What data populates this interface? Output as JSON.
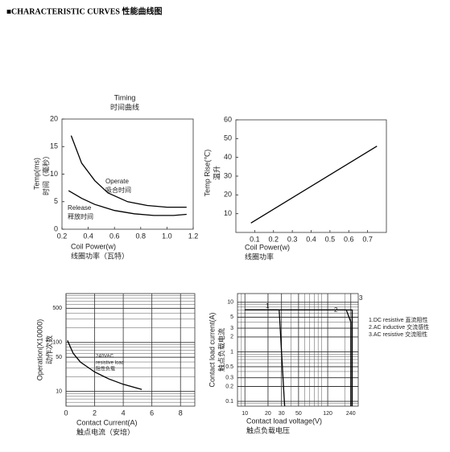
{
  "header": {
    "title": "■CHARACTERISTIC CURVES 性能曲线图"
  },
  "chart_data": [
    {
      "type": "line",
      "title": "Timing",
      "subtitle": "时间曲线",
      "xlabel": [
        "Coil Power(w)",
        "线圈功率（瓦特）"
      ],
      "ylabel": [
        "Temp(ms)",
        "时间（毫秒）"
      ],
      "xlim": [
        0.2,
        1.2
      ],
      "xticks": [
        0.2,
        0.4,
        0.6,
        0.8,
        {
          "value": 1,
          "label": "1.0"
        },
        1.2
      ],
      "ylim": [
        0,
        20
      ],
      "yticks": [
        0,
        5,
        10,
        15,
        20
      ],
      "grid": false,
      "annotations": [
        "Operate",
        "吸合时间",
        "Release",
        "释放时间"
      ],
      "series": [
        {
          "color": "#000000",
          "x": [
            0.27,
            0.35,
            0.45,
            0.55,
            0.7,
            0.85,
            1.0,
            1.15
          ],
          "values": [
            17,
            12,
            8.8,
            6.6,
            5,
            4.3,
            4,
            4
          ]
        },
        {
          "color": "#000000",
          "x": [
            0.25,
            0.35,
            0.45,
            0.6,
            0.75,
            0.9,
            1.05,
            1.15
          ],
          "values": [
            7,
            5.6,
            4.5,
            3.4,
            2.8,
            2.5,
            2.5,
            2.7
          ]
        }
      ]
    },
    {
      "type": "line",
      "xlabel": [
        "Coil Power(w)",
        "线圈功率"
      ],
      "ylabel": [
        "Temp Rise(℃)",
        "温升"
      ],
      "xlim": [
        0,
        0.8
      ],
      "xticks": [
        0.1,
        0.2,
        0.3,
        0.4,
        0.5,
        0.6,
        0.7
      ],
      "ylim": [
        0,
        60
      ],
      "yticks": [
        10,
        20,
        30,
        40,
        50,
        60
      ],
      "grid": false,
      "series": [
        {
          "color": "#000000",
          "x": [
            0.08,
            0.75
          ],
          "values": [
            5,
            46
          ]
        }
      ]
    },
    {
      "type": "line",
      "xlabel": [
        "Contact Current(A)",
        "触点电流（安培）"
      ],
      "ylabel": [
        "Operation(X10000)",
        "动作次数"
      ],
      "xlim": [
        0,
        9
      ],
      "xticks": [
        0,
        2,
        4,
        6,
        8
      ],
      "ylim": [
        5,
        1000
      ],
      "yscale": "log",
      "yticks": [
        10,
        50,
        100,
        500
      ],
      "grid": true,
      "annotations": [
        "240VAC",
        "resistive load",
        "阻性负载"
      ],
      "series": [
        {
          "color": "#000000",
          "x": [
            0.1,
            0.5,
            1,
            2,
            3,
            4,
            5.3
          ],
          "values": [
            110,
            60,
            40,
            25,
            18,
            14,
            11
          ]
        }
      ]
    },
    {
      "type": "line",
      "xlabel": [
        "Contact load voltage(V)",
        "触点负载电压"
      ],
      "ylabel": [
        "Contact load current(A)",
        "触点负载电流"
      ],
      "xlim": [
        8,
        300
      ],
      "xscale": "log",
      "xticks": [
        10,
        20,
        30,
        50,
        120,
        240
      ],
      "ylim": [
        0.08,
        15
      ],
      "yscale": "log",
      "yticks": [
        0.1,
        0.2,
        0.3,
        0.5,
        1,
        2,
        3,
        5,
        10
      ],
      "grid": true,
      "annotations": [
        "1",
        "2",
        "3"
      ],
      "series": [
        {
          "name": "1.DC resistive 直流阻性",
          "color": "#000000",
          "x": [
            10,
            28,
            30,
            33
          ],
          "values": [
            7,
            7,
            1,
            0.08
          ]
        },
        {
          "name": "2.AC inductive 交流感性",
          "color": "#000000",
          "x": [
            10,
            210,
            240,
            240
          ],
          "values": [
            7,
            7,
            4,
            0.08
          ]
        },
        {
          "name": "3.AC resistive 交流阻性",
          "color": "#000000",
          "x": [
            10,
            250,
            250
          ],
          "values": [
            7,
            7,
            0.08
          ]
        }
      ]
    }
  ]
}
